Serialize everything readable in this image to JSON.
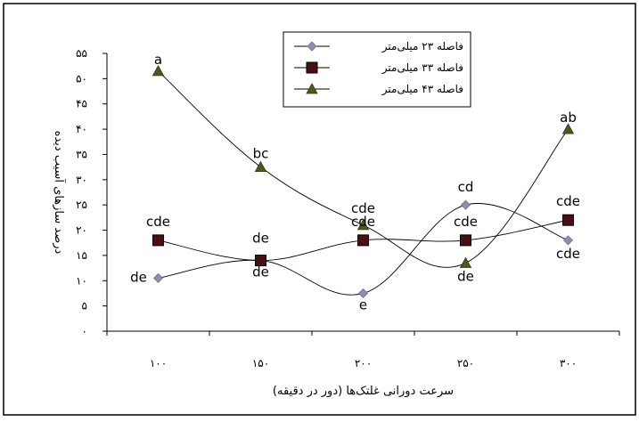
{
  "chart_data": {
    "type": "line",
    "title": "",
    "xlabel": "سرعت دورانی غلتک‌ها (دور در دقیقه)",
    "ylabel": "درصد سازهای آسیب دیده",
    "x": [
      "۱۰۰",
      "۱۵۰",
      "۲۰۰",
      "۲۵۰",
      "۳۰۰"
    ],
    "ylim": [
      0,
      55
    ],
    "y_ticks": [
      "۰",
      "۵",
      "۱۰",
      "۱۵",
      "۲۰",
      "۲۵",
      "۳۰",
      "۳۵",
      "۴۰",
      "۴۵",
      "۵۰",
      "۵۵"
    ],
    "grid": false,
    "legend_position": "top-center",
    "series": [
      {
        "name": "فاصله ۲۳ میلی‌متر",
        "marker": "diamond",
        "color": "#8c8fb0",
        "values": [
          10.5,
          14,
          7.5,
          25,
          18
        ],
        "labels": [
          "de",
          "de",
          "e",
          "cd",
          "cde"
        ]
      },
      {
        "name": "فاصله ۳۳ میلی‌متر",
        "marker": "square",
        "color": "#4a0f12",
        "values": [
          18,
          14,
          18,
          18,
          22
        ],
        "labels": [
          "cde",
          "de",
          "cde",
          "cde",
          "cde"
        ]
      },
      {
        "name": "فاصله ۴۳ میلی‌متر",
        "marker": "triangle",
        "color": "#4b5a1c",
        "values": [
          51.5,
          32.5,
          21,
          13.5,
          40
        ],
        "labels": [
          "a",
          "bc",
          "cde",
          "de",
          "ab"
        ]
      }
    ]
  }
}
